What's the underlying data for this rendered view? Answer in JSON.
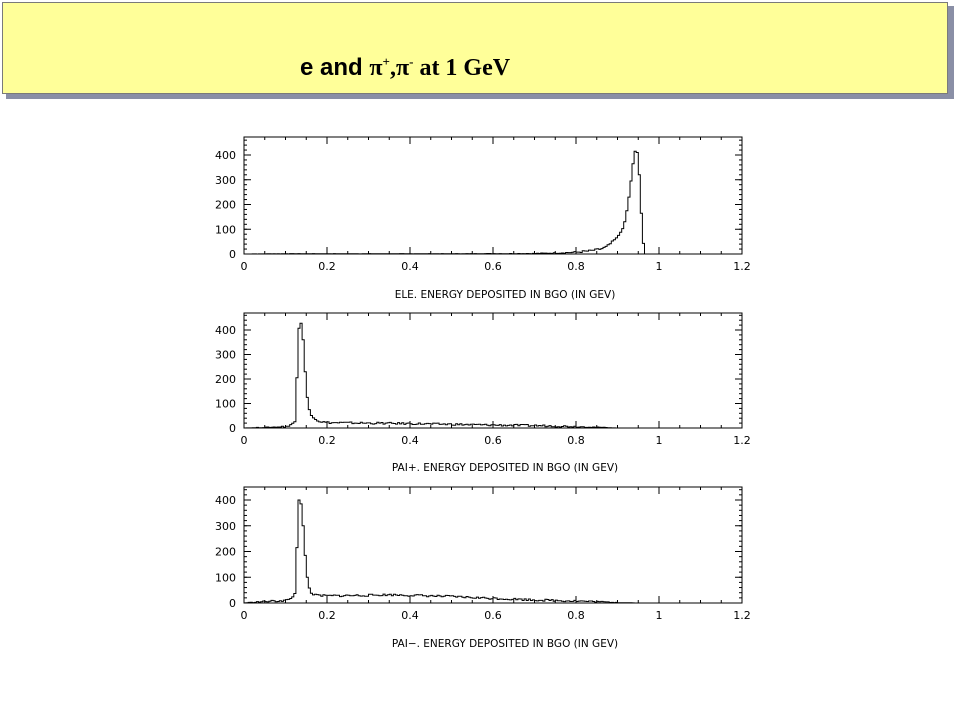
{
  "title": {
    "part1": "e and ",
    "pi1": "π",
    "sup1": "+",
    "comma": ",",
    "pi2": "π",
    "sup2": "-",
    "part2": " at 1 GeV"
  },
  "chart_data": [
    {
      "type": "histogram",
      "xlabel": "ELE. ENERGY DEPOSITED IN BGO (IN GEV)",
      "ylabel": "",
      "xlim": [
        0,
        1.2
      ],
      "ylim": [
        0,
        470
      ],
      "xticks": [
        0,
        0.2,
        0.4,
        0.6,
        0.8,
        1,
        1.2
      ],
      "xtick_labels": [
        "0",
        "0.2",
        "0.4",
        "0.6",
        "0.8",
        "1",
        "1.2"
      ],
      "yticks": [
        0,
        100,
        200,
        300,
        400
      ],
      "ytick_labels": [
        "0",
        "100",
        "200",
        "300",
        "400"
      ],
      "bin_width": 0.005,
      "bins": [
        [
          0.0,
          0
        ],
        [
          0.1,
          1
        ],
        [
          0.5,
          1
        ],
        [
          0.7,
          2
        ],
        [
          0.75,
          4
        ],
        [
          0.8,
          7
        ],
        [
          0.83,
          12
        ],
        [
          0.86,
          20
        ],
        [
          0.875,
          30
        ],
        [
          0.885,
          45
        ],
        [
          0.895,
          60
        ],
        [
          0.905,
          80
        ],
        [
          0.915,
          110
        ],
        [
          0.92,
          150
        ],
        [
          0.925,
          200
        ],
        [
          0.93,
          260
        ],
        [
          0.935,
          330
        ],
        [
          0.94,
          400
        ],
        [
          0.945,
          430
        ],
        [
          0.95,
          390
        ],
        [
          0.955,
          250
        ],
        [
          0.96,
          80
        ],
        [
          0.965,
          0
        ],
        [
          1.2,
          0
        ]
      ]
    },
    {
      "type": "histogram",
      "xlabel": "PAI+. ENERGY DEPOSITED IN BGO (IN GEV)",
      "ylabel": "",
      "xlim": [
        0,
        1.2
      ],
      "ylim": [
        0,
        470
      ],
      "xticks": [
        0,
        0.2,
        0.4,
        0.6,
        0.8,
        1,
        1.2
      ],
      "xtick_labels": [
        "0",
        "0.2",
        "0.4",
        "0.6",
        "0.8",
        "1",
        "1.2"
      ],
      "yticks": [
        0,
        100,
        200,
        300,
        400
      ],
      "ytick_labels": [
        "0",
        "100",
        "200",
        "300",
        "400"
      ],
      "bin_width": 0.005,
      "bins": [
        [
          0.0,
          0
        ],
        [
          0.04,
          2
        ],
        [
          0.08,
          4
        ],
        [
          0.11,
          8
        ],
        [
          0.125,
          30
        ],
        [
          0.13,
          380
        ],
        [
          0.135,
          435
        ],
        [
          0.14,
          420
        ],
        [
          0.145,
          300
        ],
        [
          0.15,
          160
        ],
        [
          0.155,
          90
        ],
        [
          0.16,
          60
        ],
        [
          0.17,
          40
        ],
        [
          0.18,
          28
        ],
        [
          0.2,
          22
        ],
        [
          0.3,
          20
        ],
        [
          0.4,
          18
        ],
        [
          0.5,
          15
        ],
        [
          0.6,
          12
        ],
        [
          0.7,
          10
        ],
        [
          0.8,
          6
        ],
        [
          0.85,
          3
        ],
        [
          0.9,
          0
        ],
        [
          1.2,
          0
        ]
      ]
    },
    {
      "type": "histogram",
      "xlabel": "PAI−. ENERGY DEPOSITED IN BGO (IN GEV)",
      "ylabel": "",
      "xlim": [
        0,
        1.2
      ],
      "ylim": [
        0,
        470
      ],
      "xticks": [
        0,
        0.2,
        0.4,
        0.6,
        0.8,
        1,
        1.2
      ],
      "xtick_labels": [
        "0",
        "0.2",
        "0.4",
        "0.6",
        "0.8",
        "1",
        "1.2"
      ],
      "yticks": [
        0,
        100,
        200,
        300,
        400
      ],
      "ytick_labels": [
        "0",
        "100",
        "200",
        "300",
        "400"
      ],
      "bin_width": 0.005,
      "bins": [
        [
          0.0,
          0
        ],
        [
          0.03,
          4
        ],
        [
          0.08,
          8
        ],
        [
          0.11,
          12
        ],
        [
          0.125,
          40
        ],
        [
          0.13,
          390
        ],
        [
          0.135,
          410
        ],
        [
          0.14,
          360
        ],
        [
          0.145,
          240
        ],
        [
          0.15,
          130
        ],
        [
          0.155,
          70
        ],
        [
          0.16,
          45
        ],
        [
          0.17,
          30
        ],
        [
          0.2,
          28
        ],
        [
          0.3,
          30
        ],
        [
          0.35,
          32
        ],
        [
          0.4,
          30
        ],
        [
          0.5,
          25
        ],
        [
          0.6,
          18
        ],
        [
          0.7,
          12
        ],
        [
          0.8,
          8
        ],
        [
          0.85,
          5
        ],
        [
          0.9,
          2
        ],
        [
          0.95,
          0
        ],
        [
          1.2,
          0
        ]
      ]
    }
  ]
}
